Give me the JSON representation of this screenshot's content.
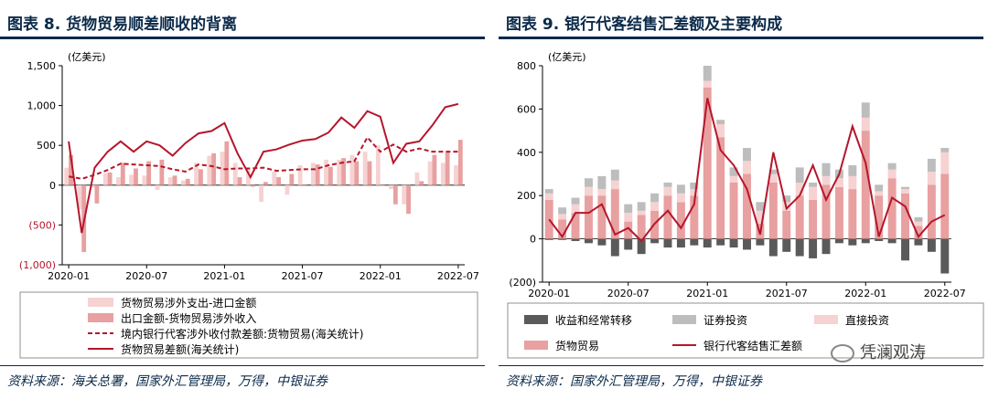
{
  "left": {
    "title": "图表 8. 货物贸易顺差顺收的背离",
    "source": "资料来源：海关总署，国家外汇管理局，万得，中银证券",
    "unit": "(亿美元)"
  },
  "right": {
    "title": "图表 9. 银行代客结售汇差额及主要构成",
    "source": "资料来源：国家外汇管理局，万得，中银证券",
    "unit": "(亿美元)"
  },
  "watermark": "凭澜观涛",
  "colors": {
    "dark_red": "#b5162c",
    "pink_bar": "#e8a0a0",
    "light_pink_bar": "#f6d2d2",
    "dark_gray_bar": "#5a5a5a",
    "light_gray_bar": "#bdbdbd",
    "title_blue": "#0b2a4a"
  },
  "chart_data": [
    {
      "type": "bar",
      "ylim": [
        -1000,
        1500
      ],
      "yticks": [
        -1000,
        -500,
        0,
        500,
        1000,
        1500
      ],
      "ytick_labels": [
        "(1,000)",
        "(500)",
        "0",
        "500",
        "1,000",
        "1,500"
      ],
      "x": [
        "2020-01",
        "2020-02",
        "2020-03",
        "2020-04",
        "2020-05",
        "2020-06",
        "2020-07",
        "2020-08",
        "2020-09",
        "2020-10",
        "2020-11",
        "2020-12",
        "2021-01",
        "2021-02",
        "2021-03",
        "2021-04",
        "2021-05",
        "2021-06",
        "2021-07",
        "2021-08",
        "2021-09",
        "2021-10",
        "2021-11",
        "2021-12",
        "2022-01",
        "2022-02",
        "2022-03",
        "2022-04",
        "2022-05",
        "2022-06",
        "2022-07"
      ],
      "xtick_labels": [
        "2020-01",
        "2020-07",
        "2021-01",
        "2021-07",
        "2022-01",
        "2022-07"
      ],
      "xtick_index": [
        0,
        6,
        12,
        18,
        24,
        30
      ],
      "series": [
        {
          "name": "货物贸易涉外支出-进口金额",
          "kind": "bar",
          "values": [
            220,
            -300,
            -30,
            150,
            100,
            130,
            120,
            -60,
            100,
            60,
            280,
            370,
            420,
            280,
            200,
            -210,
            170,
            -120,
            250,
            280,
            320,
            320,
            380,
            420,
            500,
            -50,
            -240,
            160,
            300,
            280,
            250
          ]
        },
        {
          "name": "出口金额-货物贸易涉外收入",
          "kind": "bar",
          "values": [
            380,
            -840,
            -230,
            160,
            280,
            210,
            300,
            320,
            120,
            80,
            200,
            400,
            550,
            100,
            -20,
            40,
            100,
            140,
            10,
            260,
            230,
            340,
            300,
            300,
            -10,
            -240,
            -360,
            50,
            380,
            410,
            570
          ]
        },
        {
          "name": "境内银行代客涉外收付款差额:货物贸易(海关统计)",
          "kind": "dashed-line",
          "values": [
            110,
            80,
            130,
            190,
            270,
            260,
            250,
            240,
            200,
            170,
            260,
            240,
            200,
            210,
            210,
            220,
            180,
            190,
            200,
            200,
            250,
            280,
            300,
            600,
            420,
            510,
            420,
            460,
            420,
            420,
            420
          ]
        },
        {
          "name": "货物贸易差额(海关统计)",
          "kind": "line",
          "values": [
            550,
            -600,
            220,
            420,
            550,
            420,
            550,
            500,
            370,
            530,
            650,
            680,
            780,
            400,
            100,
            420,
            450,
            510,
            560,
            580,
            660,
            850,
            720,
            930,
            860,
            280,
            520,
            550,
            750,
            980,
            1020
          ]
        }
      ],
      "legend": [
        "货物贸易涉外支出-进口金额",
        "出口金额-货物贸易涉外收入",
        "境内银行代客涉外收付款差额:货物贸易(海关统计)",
        "货物贸易差额(海关统计)"
      ]
    },
    {
      "type": "bar",
      "ylim": [
        -200,
        800
      ],
      "yticks": [
        -200,
        0,
        200,
        400,
        600,
        800
      ],
      "ytick_labels": [
        "(200)",
        "0",
        "200",
        "400",
        "600",
        "800"
      ],
      "x": [
        "2020-01",
        "2020-02",
        "2020-03",
        "2020-04",
        "2020-05",
        "2020-06",
        "2020-07",
        "2020-08",
        "2020-09",
        "2020-10",
        "2020-11",
        "2020-12",
        "2021-01",
        "2021-02",
        "2021-03",
        "2021-04",
        "2021-05",
        "2021-06",
        "2021-07",
        "2021-08",
        "2021-09",
        "2021-10",
        "2021-11",
        "2021-12",
        "2022-01",
        "2022-02",
        "2022-03",
        "2022-04",
        "2022-05",
        "2022-06",
        "2022-07"
      ],
      "xtick_labels": [
        "2020-01",
        "2020-07",
        "2021-01",
        "2021-07",
        "2022-01",
        "2022-07"
      ],
      "xtick_index": [
        0,
        6,
        12,
        18,
        24,
        30
      ],
      "series": [
        {
          "name": "收益和经常转移",
          "kind": "bar",
          "values": [
            -5,
            -5,
            -10,
            -20,
            -30,
            -80,
            -50,
            -70,
            -20,
            -40,
            -40,
            -30,
            -40,
            -30,
            -40,
            -50,
            -30,
            -80,
            -60,
            -80,
            -90,
            -70,
            -20,
            -30,
            -20,
            -10,
            -20,
            -100,
            -30,
            -60,
            -160
          ]
        },
        {
          "name": "证券投资",
          "kind": "bar",
          "values": [
            20,
            30,
            30,
            40,
            60,
            50,
            40,
            40,
            40,
            20,
            40,
            30,
            70,
            20,
            40,
            60,
            40,
            20,
            30,
            70,
            20,
            60,
            40,
            50,
            70,
            30,
            30,
            10,
            20,
            60,
            20
          ]
        },
        {
          "name": "直接投资",
          "kind": "bar",
          "values": [
            30,
            25,
            40,
            40,
            30,
            40,
            40,
            20,
            40,
            40,
            40,
            30,
            30,
            60,
            30,
            60,
            60,
            40,
            40,
            60,
            60,
            40,
            40,
            60,
            60,
            20,
            40,
            20,
            20,
            60,
            100
          ]
        },
        {
          "name": "货物贸易",
          "kind": "bar",
          "values": [
            180,
            90,
            120,
            200,
            200,
            230,
            80,
            110,
            130,
            200,
            170,
            200,
            700,
            470,
            260,
            300,
            70,
            260,
            130,
            200,
            180,
            250,
            240,
            230,
            500,
            200,
            280,
            210,
            60,
            250,
            300
          ]
        },
        {
          "name": "银行代客结售汇差额",
          "kind": "line",
          "values": [
            90,
            10,
            120,
            120,
            160,
            20,
            50,
            -10,
            70,
            130,
            50,
            160,
            650,
            410,
            340,
            230,
            20,
            400,
            140,
            200,
            340,
            180,
            300,
            520,
            350,
            10,
            190,
            150,
            10,
            80,
            110
          ]
        }
      ],
      "legend": [
        "收益和经常转移",
        "证券投资",
        "直接投资",
        "货物贸易",
        "银行代客结售汇差额"
      ]
    }
  ]
}
